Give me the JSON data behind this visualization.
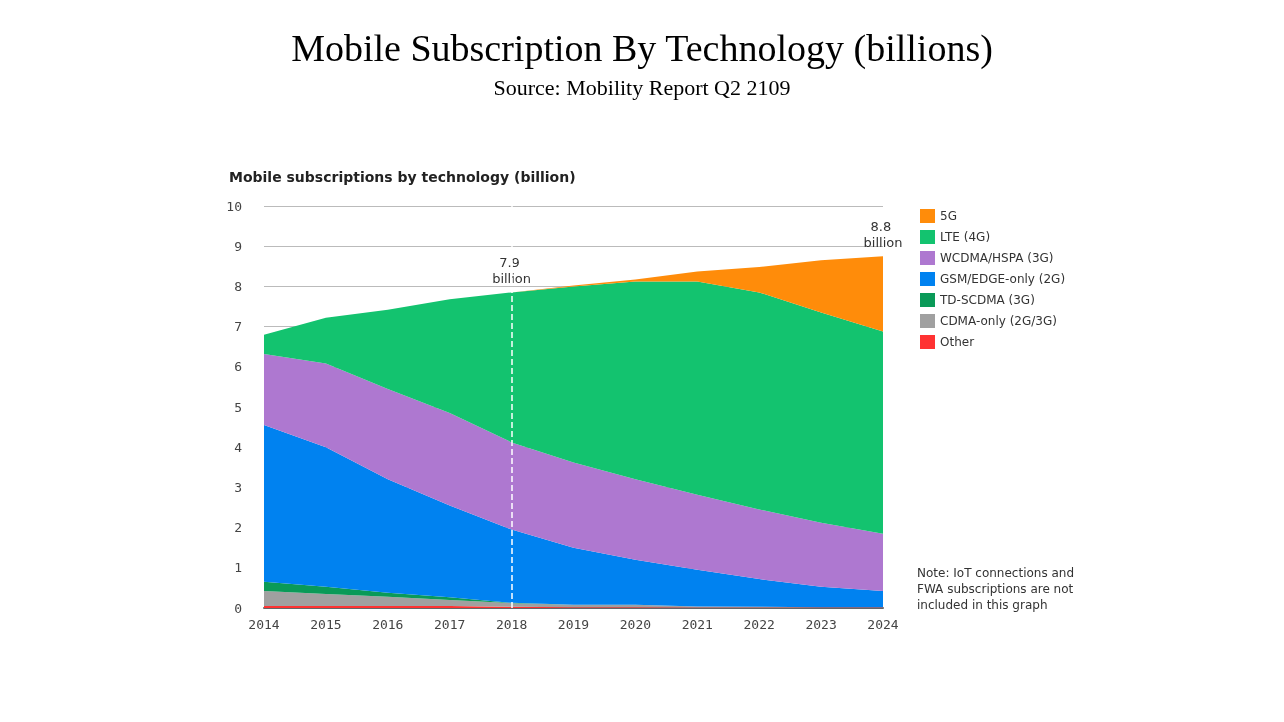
{
  "chart_data": {
    "type": "area",
    "stacked": true,
    "title": "Mobile Subscription By Technology (billions)",
    "subtitle": "Mobile subscriptions by technology (billion)",
    "annotations": [
      "Source: Mobility Report Q2 2109",
      "Note: IoT connections and FWA subscriptions are not included in this graph",
      {
        "text": "7.9 billion",
        "x": "2018",
        "y": 7.9
      },
      {
        "text": "8.8 billion",
        "x": "2024",
        "y": 8.8
      }
    ],
    "categories": [
      "2014",
      "2015",
      "2016",
      "2017",
      "2018",
      "2019",
      "2020",
      "2021",
      "2022",
      "2023",
      "2024"
    ],
    "series": [
      {
        "name": "Other",
        "color": "#ff3232",
        "values": [
          0.05,
          0.05,
          0.05,
          0.05,
          0.03,
          0.02,
          0.02,
          0.01,
          0.01,
          0.01,
          0.01
        ]
      },
      {
        "name": "CDMA-only (2G/3G)",
        "color": "#a0a0a0",
        "values": [
          0.37,
          0.3,
          0.23,
          0.15,
          0.09,
          0.06,
          0.06,
          0.03,
          0.02,
          0.01,
          0.01
        ]
      },
      {
        "name": "TD-SCDMA (3G)",
        "color": "#0a9a58",
        "values": [
          0.23,
          0.18,
          0.1,
          0.07,
          0.01,
          0,
          0,
          0,
          0,
          0,
          0
        ]
      },
      {
        "name": "GSM/EDGE-only (2G)",
        "color": "#0082f0",
        "values": [
          3.9,
          3.47,
          2.82,
          2.28,
          1.82,
          1.42,
          1.12,
          0.91,
          0.69,
          0.51,
          0.4
        ]
      },
      {
        "name": "WCDMA/HSPA (3G)",
        "color": "#ae78d0",
        "values": [
          1.77,
          2.08,
          2.25,
          2.3,
          2.17,
          2.12,
          2.0,
          1.87,
          1.73,
          1.59,
          1.43
        ]
      },
      {
        "name": "LTE (4G)",
        "color": "#13c36f",
        "values": [
          0.48,
          1.14,
          1.97,
          2.83,
          3.73,
          4.38,
          4.92,
          5.3,
          5.4,
          5.23,
          5.03
        ]
      },
      {
        "name": "5G",
        "color": "#ff8c0a",
        "values": [
          0,
          0,
          0,
          0,
          0,
          0.02,
          0.05,
          0.25,
          0.63,
          1.3,
          1.87
        ]
      }
    ],
    "ylim": [
      0,
      10
    ],
    "yticks": [
      0,
      1,
      2,
      3,
      4,
      5,
      6,
      7,
      8,
      9,
      10
    ],
    "grid": "y",
    "legend": "right",
    "ref_lines": [
      {
        "axis": "x",
        "value": "2018",
        "color": "#ffffff",
        "line_style": "dashed"
      }
    ]
  }
}
